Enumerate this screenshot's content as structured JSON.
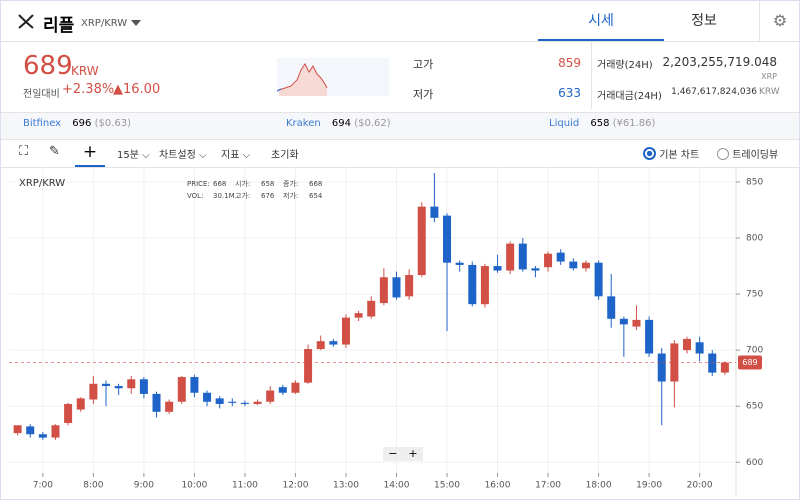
{
  "header": {
    "name": "리플",
    "pair": "XRP/KRW",
    "tabs": [
      "시세",
      "정보"
    ]
  },
  "summary": {
    "price": "689",
    "currency": "KRW",
    "change_label": "전일대비",
    "change_pct": "+2.38%",
    "change_abs": "▲16.00",
    "high_label": "고가",
    "high": "859",
    "low_label": "저가",
    "low": "633",
    "volume_label": "거래량(24H)",
    "volume": "2,203,255,719.048",
    "volume_unit": "XRP",
    "amount_label": "거래대금(24H)",
    "amount": "1,467,617,824,036",
    "amount_unit": "KRW"
  },
  "exchanges": [
    {
      "name": "Bitfinex",
      "price": "696",
      "sub": "($0.63)"
    },
    {
      "name": "Kraken",
      "price": "694",
      "sub": "($0.62)"
    },
    {
      "name": "Liquid",
      "price": "658",
      "sub": "(¥61.86)"
    }
  ],
  "toolbar": {
    "interval": "15분",
    "settings": "차트설정",
    "indicator": "지표",
    "reset": "초기화",
    "basic": "기본 차트",
    "tradingview": "트레이딩뷰"
  },
  "info": {
    "pair": "XRP/KRW",
    "rows": [
      [
        "PRICE:",
        "668",
        "시가:",
        "658",
        "종가:",
        "668"
      ],
      [
        "VOL:",
        "30.1M",
        "고가:",
        "676",
        "저가:",
        "654"
      ]
    ]
  },
  "zoom": [
    "−",
    "+"
  ],
  "chart_data": {
    "type": "candlestick",
    "up_color": "#d24f45",
    "down_color": "#1e64c8",
    "last": 689,
    "xlim": [
      6.33,
      20.72
    ],
    "xticks": [
      {
        "value": 7,
        "label": "7:00"
      },
      {
        "value": 8,
        "label": "8:00"
      },
      {
        "value": 9,
        "label": "9:00"
      },
      {
        "value": 10,
        "label": "10:00"
      },
      {
        "value": 11,
        "label": "11:00"
      },
      {
        "value": 12,
        "label": "12:00"
      },
      {
        "value": 13,
        "label": "13:00"
      },
      {
        "value": 14,
        "label": "14:00"
      },
      {
        "value": 15,
        "label": "15:00"
      },
      {
        "value": 16,
        "label": "16:00"
      },
      {
        "value": 17,
        "label": "17:00"
      },
      {
        "value": 18,
        "label": "18:00"
      },
      {
        "value": 19,
        "label": "19:00"
      },
      {
        "value": 20,
        "label": "20:00"
      }
    ],
    "ylim": [
      594,
      858
    ],
    "yticks": [
      600,
      650,
      700,
      750,
      800,
      850
    ],
    "x": [
      6.5,
      6.75,
      7,
      7.25,
      7.5,
      7.75,
      8,
      8.25,
      8.5,
      8.75,
      9,
      9.25,
      9.5,
      9.75,
      10,
      10.25,
      10.5,
      10.75,
      11,
      11.25,
      11.5,
      11.75,
      12,
      12.25,
      12.5,
      12.75,
      13,
      13.25,
      13.5,
      13.75,
      14,
      14.25,
      14.5,
      14.75,
      15,
      15.25,
      15.5,
      15.75,
      16,
      16.25,
      16.5,
      16.75,
      17,
      17.25,
      17.5,
      17.75,
      18,
      18.25,
      18.5,
      18.75,
      19,
      19.25,
      19.5,
      19.75,
      20,
      20.25,
      20.5
    ],
    "open": [
      626,
      632,
      625,
      622,
      635,
      647,
      656,
      670,
      668,
      666,
      674,
      661,
      645,
      654,
      676,
      662,
      657,
      654,
      653,
      652,
      654,
      667,
      662,
      671,
      701,
      708,
      705,
      729,
      730,
      742,
      765,
      748,
      767,
      828,
      820,
      778,
      776,
      741,
      775,
      771,
      795,
      773,
      774,
      787,
      779,
      773,
      778,
      748,
      728,
      721,
      727,
      697,
      672,
      700,
      707,
      697,
      680
    ],
    "high": [
      631,
      634,
      627,
      634,
      653,
      658,
      677,
      673,
      670,
      677,
      676,
      663,
      656,
      677,
      678,
      664,
      659,
      657,
      655,
      656,
      668,
      669,
      673,
      705,
      713,
      710,
      732,
      735,
      748,
      773,
      770,
      772,
      832,
      858,
      822,
      780,
      779,
      777,
      785,
      797,
      800,
      775,
      788,
      790,
      782,
      780,
      780,
      768,
      730,
      740,
      730,
      702,
      709,
      712,
      712,
      700,
      690
    ],
    "low": [
      624,
      622,
      620,
      620,
      633,
      645,
      652,
      650,
      660,
      661,
      657,
      640,
      643,
      652,
      658,
      650,
      648,
      650,
      650,
      651,
      652,
      660,
      661,
      670,
      700,
      703,
      702,
      726,
      728,
      740,
      745,
      745,
      765,
      814,
      717,
      770,
      739,
      738,
      769,
      768,
      770,
      765,
      770,
      776,
      771,
      770,
      745,
      720,
      694,
      718,
      694,
      633,
      649,
      697,
      690,
      677,
      678
    ],
    "close": [
      633,
      625,
      622,
      633,
      652,
      657,
      670,
      668,
      666,
      674,
      661,
      645,
      654,
      676,
      662,
      654,
      652,
      653,
      652,
      654,
      664,
      662,
      671,
      701,
      708,
      705,
      729,
      733,
      744,
      765,
      747,
      767,
      828,
      818,
      778,
      776,
      741,
      775,
      771,
      795,
      772,
      771,
      786,
      779,
      773,
      778,
      748,
      728,
      723,
      727,
      697,
      672,
      706,
      710,
      697,
      680,
      689
    ]
  }
}
